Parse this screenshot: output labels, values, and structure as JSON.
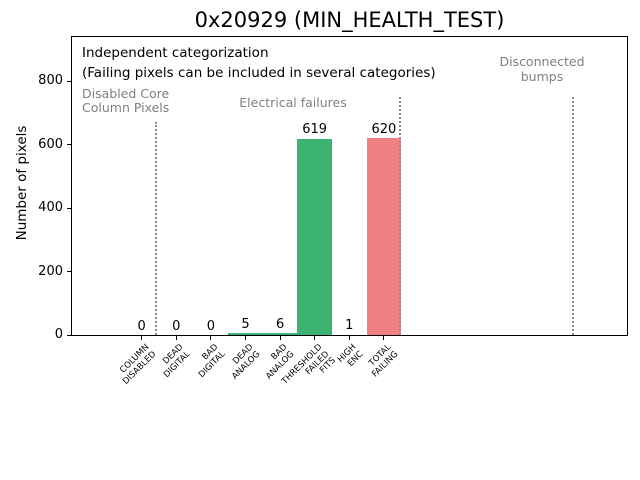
{
  "chart_data": {
    "type": "bar",
    "title": "0x20929 (MIN_HEALTH_TEST)",
    "ylabel": "Number of pixels",
    "xlabel": "",
    "ylim": [
      0,
      940
    ],
    "yticks": [
      0,
      200,
      400,
      600,
      800
    ],
    "grid": false,
    "categories": [
      "COLUMN\nDISABLED",
      "DEAD\nDIGITAL",
      "BAD\nDIGITAL",
      "DEAD\nANALOG",
      "BAD\nANALOG",
      "THRESHOLD\nFAILED\nFITS",
      "HIGH\nENC",
      "TOTAL\nFAILING"
    ],
    "values": [
      0,
      0,
      0,
      5,
      6,
      619,
      1,
      620
    ],
    "bar_value_labels": [
      "0",
      "0",
      "0",
      "5",
      "6",
      "619",
      "1",
      "620"
    ],
    "bar_colors": [
      "#3cb371",
      "#3cb371",
      "#3cb371",
      "#3cb371",
      "#3cb371",
      "#3cb371",
      "#3cb371",
      "#f08080"
    ],
    "annotations": {
      "header_line1": "Independent categorization",
      "header_line2": "(Failing pixels can be included in several categories)",
      "sections": [
        {
          "label": "Disabled Core\nColumn Pixels"
        },
        {
          "label": "Electrical failures"
        },
        {
          "label": "Disconnected\nbumps"
        }
      ]
    },
    "separators": [
      {
        "x": 0.4,
        "ymax": 0.715,
        "style": "dotted"
      },
      {
        "x": 7.47,
        "ymax": 0.8,
        "style": "dotted"
      },
      {
        "x": 12.47,
        "ymax": 0.8,
        "style": "dotted"
      }
    ],
    "colors": {
      "bar_green": "#3cb371",
      "bar_red": "#f08080",
      "section_label_text": "#7f7f7f",
      "separator_line": "#8c8c8c",
      "axis_text": "#000000"
    }
  }
}
